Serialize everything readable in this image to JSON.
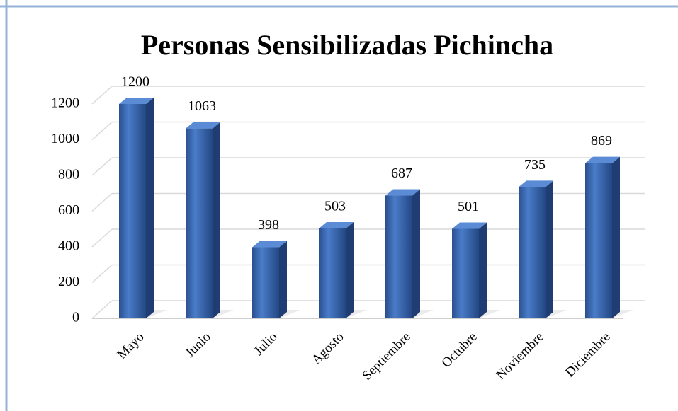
{
  "chart_data": {
    "type": "bar3d",
    "title": "Personas Sensibilizadas Pichincha",
    "categories": [
      "Mayo",
      "Junio",
      "Julio",
      "Agosto",
      "Septiembre",
      "Octubre",
      "Noviembre",
      "Diciembre"
    ],
    "values": [
      1200,
      1063,
      398,
      503,
      687,
      501,
      735,
      869
    ],
    "color": "#2f5fa8",
    "ylim": [
      0,
      1200
    ],
    "yticks": [
      0,
      200,
      400,
      600,
      800,
      1000,
      1200
    ],
    "grid": true
  }
}
